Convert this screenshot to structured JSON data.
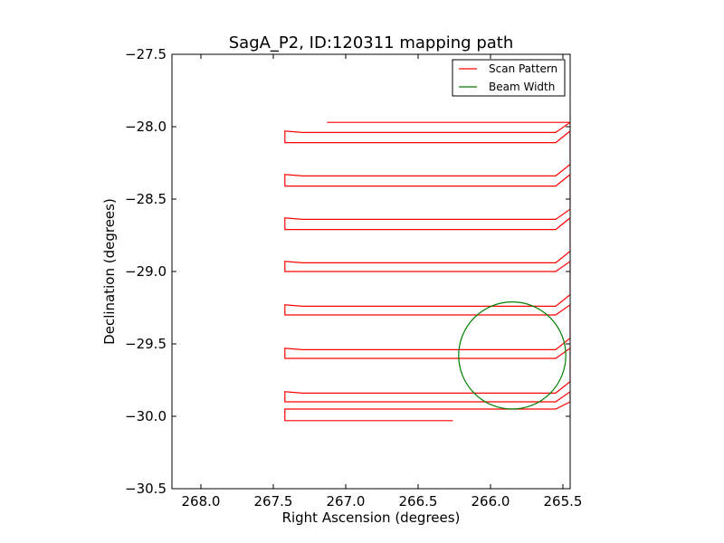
{
  "chart_data": {
    "type": "line",
    "title": "SagA_P2, ID:120311 mapping path",
    "xlabel": "Right Ascension (degrees)",
    "ylabel": "Declination (degrees)",
    "xlim": [
      268.2,
      265.45
    ],
    "ylim": [
      -30.5,
      -27.5
    ],
    "x_inverted": true,
    "xticks": [
      268.0,
      267.5,
      267.0,
      266.5,
      266.0,
      265.5
    ],
    "xtick_labels": [
      "268.0",
      "267.5",
      "267.0",
      "266.5",
      "266.0",
      "265.5"
    ],
    "yticks": [
      -27.5,
      -28.0,
      -28.5,
      -29.0,
      -29.5,
      -30.0,
      -30.5
    ],
    "ytick_labels": [
      "−27.5",
      "−28.0",
      "−28.5",
      "−29.0",
      "−29.5",
      "−30.0",
      "−30.5"
    ],
    "grid": false,
    "legend_position": "top-right",
    "series": [
      {
        "name": "Scan Pattern",
        "color": "#ff0000",
        "kind": "path",
        "x": [
          267.13,
          265.48,
          265.45,
          265.55,
          267.3,
          267.42,
          267.42,
          267.3,
          265.55,
          265.45,
          265.45,
          265.55,
          267.3,
          267.42,
          267.42,
          267.3,
          265.55,
          265.45,
          265.45,
          265.55,
          267.3,
          267.42,
          267.42,
          267.3,
          265.55,
          265.45,
          265.45,
          265.55,
          267.3,
          267.42,
          267.42,
          267.3,
          265.55,
          265.45,
          265.45,
          265.55,
          267.3,
          267.42,
          267.42,
          267.3,
          265.55,
          265.45,
          265.45,
          265.55,
          267.3,
          267.42,
          267.42,
          267.3,
          265.55,
          265.45,
          265.45,
          265.55,
          267.3,
          267.42,
          267.42,
          267.3,
          265.55,
          265.45,
          265.45,
          265.55,
          267.3,
          267.42,
          267.42,
          267.3,
          266.26
        ],
        "y": [
          -27.97,
          -27.97,
          -27.97,
          -28.04,
          -28.04,
          -28.03,
          -28.11,
          -28.11,
          -28.11,
          -28.03,
          -28.26,
          -28.34,
          -28.34,
          -28.33,
          -28.41,
          -28.41,
          -28.41,
          -28.33,
          -28.57,
          -28.64,
          -28.64,
          -28.63,
          -28.71,
          -28.71,
          -28.71,
          -28.63,
          -28.86,
          -28.94,
          -28.94,
          -28.93,
          -29.0,
          -29.0,
          -29.0,
          -28.93,
          -29.16,
          -29.24,
          -29.24,
          -29.23,
          -29.3,
          -29.3,
          -29.3,
          -29.23,
          -29.46,
          -29.54,
          -29.54,
          -29.53,
          -29.6,
          -29.6,
          -29.6,
          -29.53,
          -29.76,
          -29.84,
          -29.84,
          -29.83,
          -29.9,
          -29.9,
          -29.9,
          -29.83,
          -29.9,
          -29.95,
          -29.95,
          -29.95,
          -30.03,
          -30.03,
          -30.03
        ]
      },
      {
        "name": "Beam Width",
        "color": "#008000",
        "kind": "circle",
        "center": [
          265.85,
          -29.58
        ],
        "radius": 0.37
      }
    ]
  }
}
